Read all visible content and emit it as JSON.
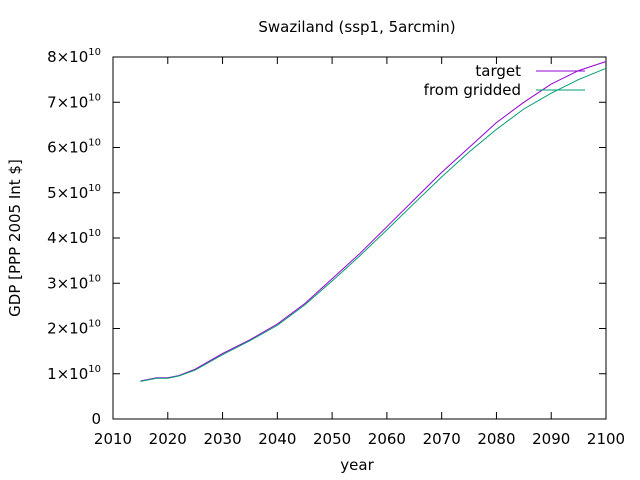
{
  "chart_data": {
    "type": "line",
    "title": "Swaziland (ssp1, 5arcmin)",
    "xlabel": "year",
    "ylabel": "GDP [PPP 2005 Int $]",
    "xlim": [
      2010,
      2100
    ],
    "ylim": [
      0,
      80000000000
    ],
    "xticks": [
      "2010",
      "2020",
      "2030",
      "2040",
      "2050",
      "2060",
      "2070",
      "2080",
      "2090",
      "2100"
    ],
    "yticks": [
      {
        "value": 0,
        "mantissa": "0",
        "exp": ""
      },
      {
        "value": 10000000000,
        "mantissa": "1×10",
        "exp": "10"
      },
      {
        "value": 20000000000,
        "mantissa": "2×10",
        "exp": "10"
      },
      {
        "value": 30000000000,
        "mantissa": "3×10",
        "exp": "10"
      },
      {
        "value": 40000000000,
        "mantissa": "4×10",
        "exp": "10"
      },
      {
        "value": 50000000000,
        "mantissa": "5×10",
        "exp": "10"
      },
      {
        "value": 60000000000,
        "mantissa": "6×10",
        "exp": "10"
      },
      {
        "value": 70000000000,
        "mantissa": "7×10",
        "exp": "10"
      },
      {
        "value": 80000000000,
        "mantissa": "8×10",
        "exp": "10"
      }
    ],
    "grid": false,
    "legend": "top-right",
    "x": [
      2015,
      2018,
      2020,
      2022,
      2025,
      2030,
      2035,
      2040,
      2045,
      2050,
      2055,
      2060,
      2065,
      2070,
      2075,
      2080,
      2085,
      2090,
      2095,
      2100
    ],
    "series": [
      {
        "name": "target",
        "color": "#9400d3",
        "values": [
          8400000000.0,
          9100000000.0,
          9100000000.0,
          9600000000.0,
          11000000000.0,
          14500000000.0,
          17500000000.0,
          21000000000.0,
          25500000000.0,
          31000000000.0,
          36500000000.0,
          42500000000.0,
          48500000000.0,
          54500000000.0,
          60000000000.0,
          65500000000.0,
          70000000000.0,
          74000000000.0,
          77000000000.0,
          79000000000.0
        ]
      },
      {
        "name": "from gridded",
        "color": "#009e73",
        "values": [
          8300000000.0,
          9000000000.0,
          9000000000.0,
          9500000000.0,
          10800000000.0,
          14200000000.0,
          17300000000.0,
          20700000000.0,
          25200000000.0,
          30500000000.0,
          36000000000.0,
          41800000000.0,
          47700000000.0,
          53500000000.0,
          59000000000.0,
          64000000000.0,
          68500000000.0,
          72000000000.0,
          75000000000.0,
          77500000000.0
        ]
      }
    ]
  }
}
